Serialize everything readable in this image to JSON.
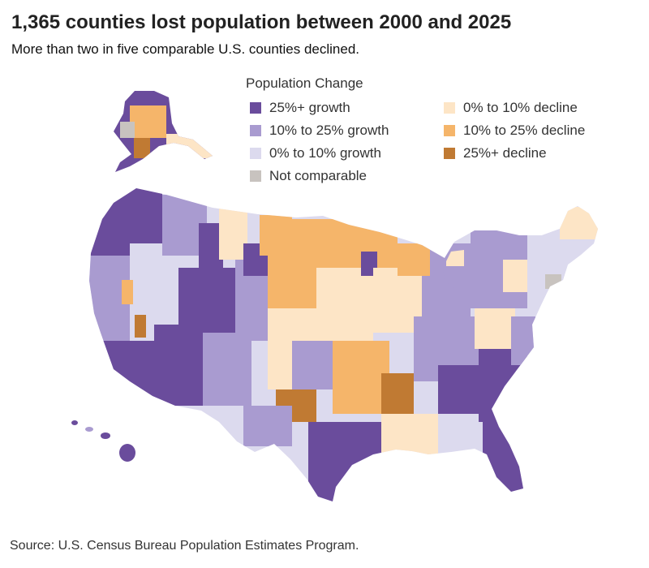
{
  "title": "1,365 counties lost population between 2000 and 2025",
  "subtitle": "More than two in five comparable U.S. counties declined.",
  "legend": {
    "title": "Population Change",
    "items": [
      {
        "label": "25%+ growth",
        "color": "#6a4c9c"
      },
      {
        "label": "10% to 25% growth",
        "color": "#a99bd0"
      },
      {
        "label": "0% to 10% growth",
        "color": "#dcdaee"
      },
      {
        "label": "Not comparable",
        "color": "#c8c3bf"
      },
      {
        "label": "0% to 10% decline",
        "color": "#fde5c6"
      },
      {
        "label": "10% to 25% decline",
        "color": "#f5b56a"
      },
      {
        "label": "25%+ decline",
        "color": "#c07a33"
      }
    ]
  },
  "source": "Source: U.S. Census Bureau Population Estimates Program."
}
